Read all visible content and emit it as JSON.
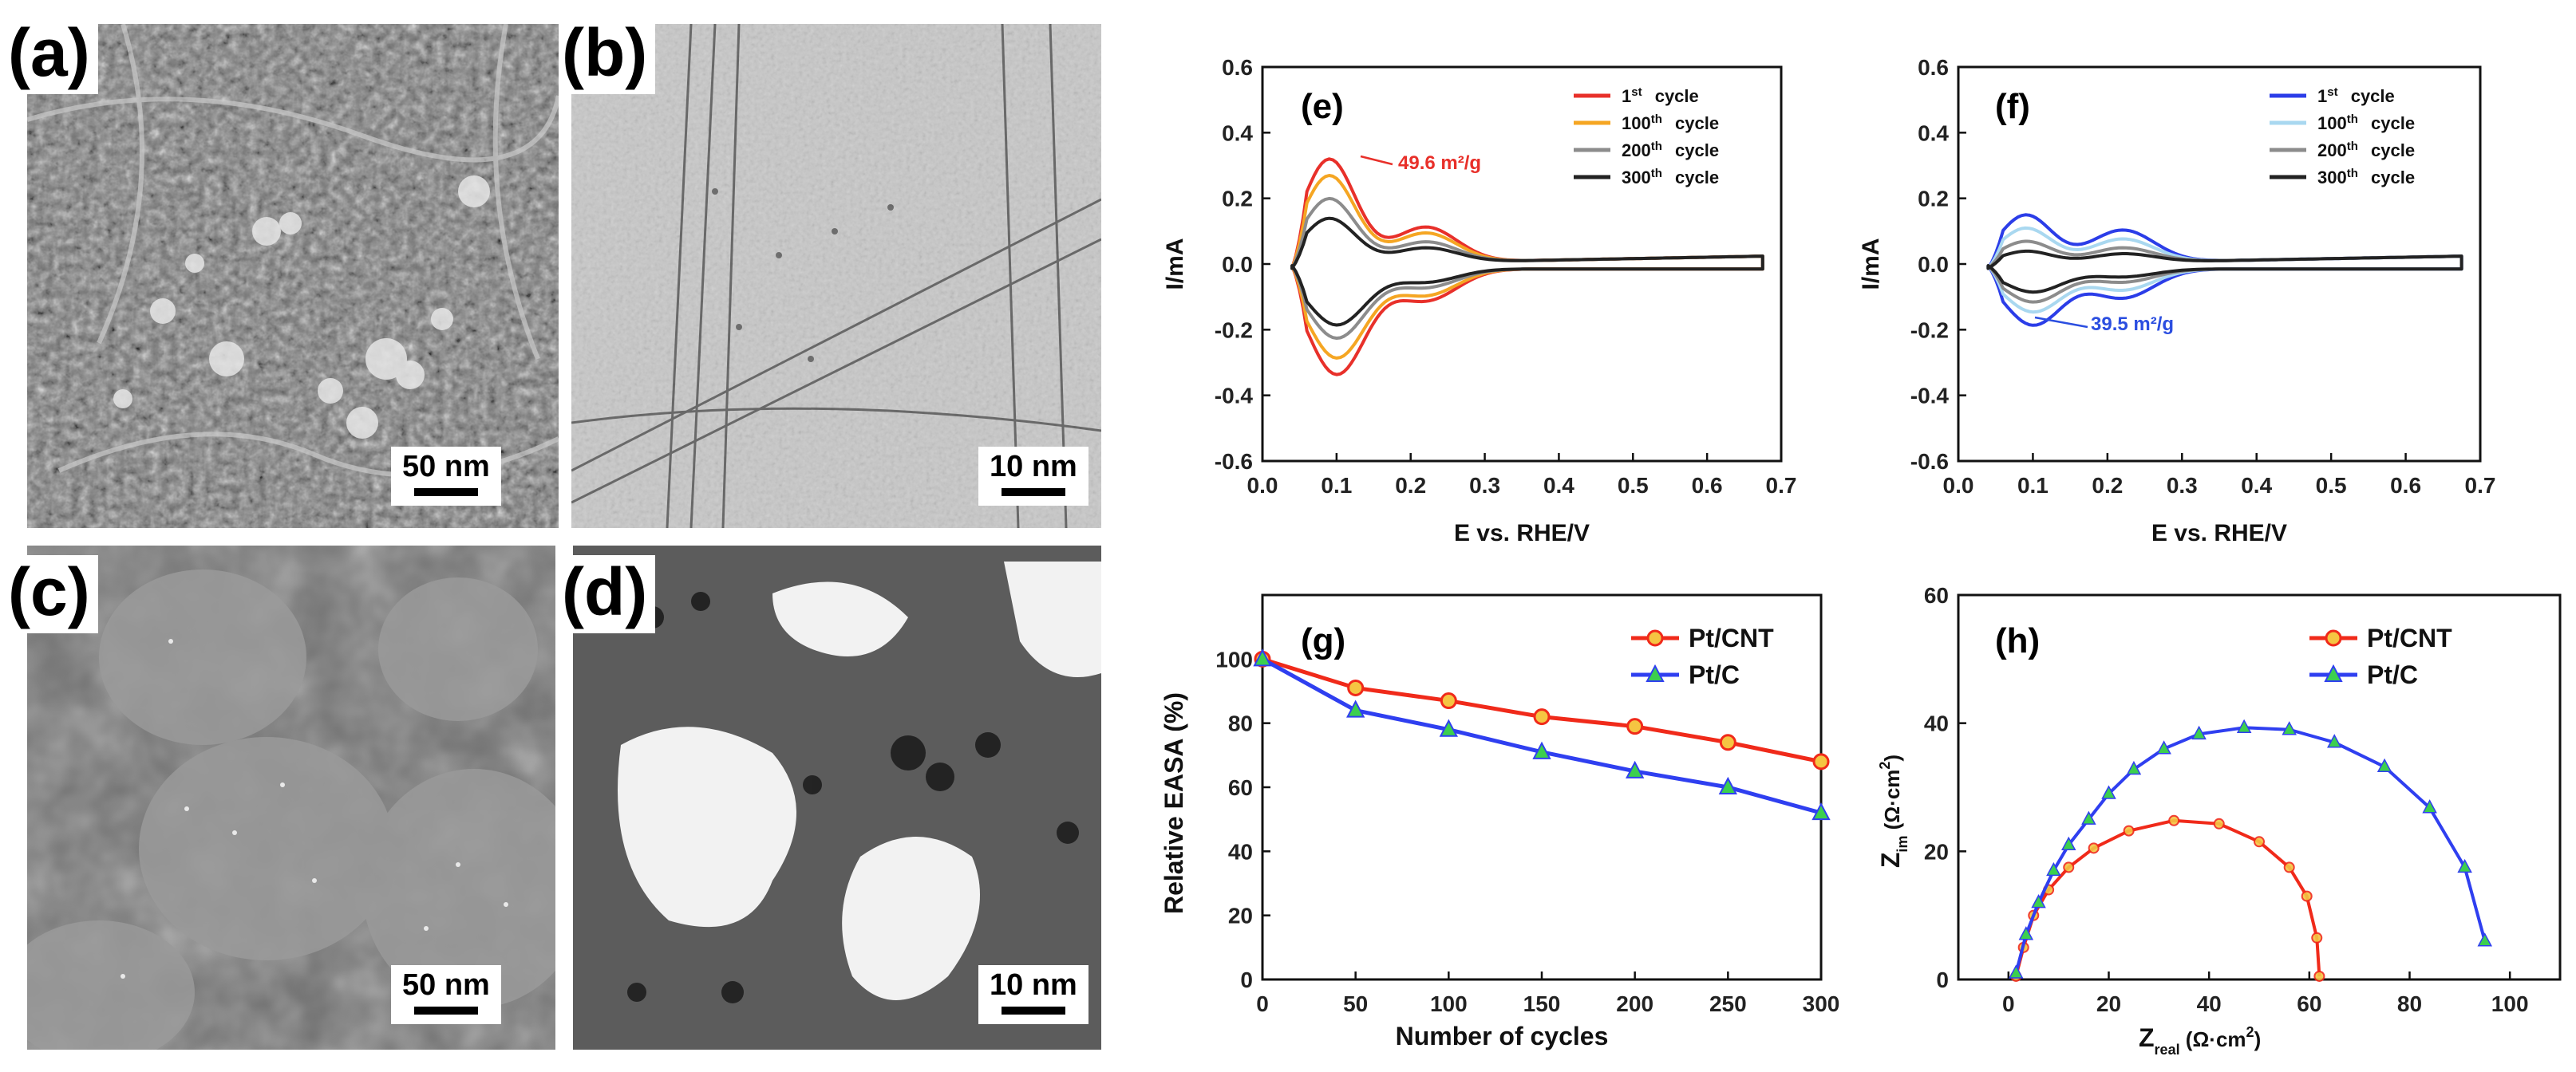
{
  "figure": {
    "micrographs": [
      {
        "label": "(a)",
        "scale": "50 nm",
        "kind": "SEM"
      },
      {
        "label": "(b)",
        "scale": "10 nm",
        "kind": "TEM"
      },
      {
        "label": "(c)",
        "scale": "50 nm",
        "kind": "SEM"
      },
      {
        "label": "(d)",
        "scale": "10 nm",
        "kind": "TEM"
      }
    ]
  },
  "chart_data": [
    {
      "id": "e",
      "panel_label": "(e)",
      "type": "line",
      "xlabel": "E vs. RHE/V",
      "ylabel": "I/mA",
      "xlim": [
        0.0,
        0.7
      ],
      "ylim": [
        -0.6,
        0.6
      ],
      "xticks": [
        "0.0",
        "0.1",
        "0.2",
        "0.3",
        "0.4",
        "0.5",
        "0.6",
        "0.7"
      ],
      "yticks": [
        "0.6",
        "0.4",
        "0.2",
        "0.0",
        "-0.2",
        "-0.4",
        "-0.6"
      ],
      "annotation": "49.6 m²/g",
      "annotation_color": "#e8302a",
      "legend": [
        {
          "sup": "st",
          "pre": "1",
          "post": "cycle",
          "color": "#e8302a"
        },
        {
          "sup": "th",
          "pre": "100",
          "post": "cycle",
          "color": "#f5a623"
        },
        {
          "sup": "th",
          "pre": "200",
          "post": "cycle",
          "color": "#8c8c8c"
        },
        {
          "sup": "th",
          "pre": "300",
          "post": "cycle",
          "color": "#222222"
        }
      ],
      "series": [
        {
          "name": "1st cycle",
          "color": "#e8302a",
          "peak_anodic": 0.33,
          "peak_cathodic": -0.33,
          "shoulder": 0.12
        },
        {
          "name": "100th cycle",
          "color": "#f5a623",
          "peak_anodic": 0.28,
          "peak_cathodic": -0.28,
          "shoulder": 0.1
        },
        {
          "name": "200th cycle",
          "color": "#8c8c8c",
          "peak_anodic": 0.21,
          "peak_cathodic": -0.22,
          "shoulder": 0.07
        },
        {
          "name": "300th cycle",
          "color": "#222222",
          "peak_anodic": 0.15,
          "peak_cathodic": -0.18,
          "shoulder": 0.05
        }
      ]
    },
    {
      "id": "f",
      "panel_label": "(f)",
      "type": "line",
      "xlabel": "E vs. RHE/V",
      "ylabel": "I/mA",
      "xlim": [
        0.0,
        0.7
      ],
      "ylim": [
        -0.6,
        0.6
      ],
      "xticks": [
        "0.0",
        "0.1",
        "0.2",
        "0.3",
        "0.4",
        "0.5",
        "0.6",
        "0.7"
      ],
      "yticks": [
        "0.6",
        "0.4",
        "0.2",
        "0.0",
        "-0.2",
        "-0.4",
        "-0.6"
      ],
      "annotation": "39.5 m²/g",
      "annotation_color": "#2b4ee0",
      "legend": [
        {
          "sup": "st",
          "pre": "1",
          "post": "cycle",
          "color": "#2b3de8"
        },
        {
          "sup": "th",
          "pre": "100",
          "post": "cycle",
          "color": "#a9d8f0"
        },
        {
          "sup": "th",
          "pre": "200",
          "post": "cycle",
          "color": "#8c8c8c"
        },
        {
          "sup": "th",
          "pre": "300",
          "post": "cycle",
          "color": "#222222"
        }
      ],
      "series": [
        {
          "name": "1st cycle",
          "color": "#2b3de8",
          "peak_anodic": 0.16,
          "peak_cathodic": -0.18,
          "shoulder": 0.11
        },
        {
          "name": "100th cycle",
          "color": "#a9d8f0",
          "peak_anodic": 0.12,
          "peak_cathodic": -0.14,
          "shoulder": 0.08
        },
        {
          "name": "200th cycle",
          "color": "#8c8c8c",
          "peak_anodic": 0.08,
          "peak_cathodic": -0.11,
          "shoulder": 0.05
        },
        {
          "name": "300th cycle",
          "color": "#222222",
          "peak_anodic": 0.05,
          "peak_cathodic": -0.08,
          "shoulder": 0.03
        }
      ]
    },
    {
      "id": "g",
      "panel_label": "(g)",
      "type": "line",
      "xlabel": "Number of cycles",
      "ylabel": "Relative EASA (%)",
      "xlim": [
        0,
        300
      ],
      "ylim": [
        0,
        120
      ],
      "xticks": [
        "0",
        "50",
        "100",
        "150",
        "200",
        "250",
        "300"
      ],
      "yticks": [
        "0",
        "20",
        "40",
        "60",
        "80",
        "100"
      ],
      "x": [
        0,
        50,
        100,
        150,
        200,
        250,
        300
      ],
      "series": [
        {
          "name": "Pt/CNT",
          "color": "#f02a1a",
          "marker": "circle",
          "marker_fill": "#f5c542",
          "values": [
            100,
            91,
            87,
            82,
            79,
            74,
            68
          ]
        },
        {
          "name": "Pt/C",
          "color": "#2f3ff0",
          "marker": "triangle",
          "marker_fill": "#3ccf4e",
          "values": [
            100,
            84,
            78,
            71,
            65,
            60,
            52
          ]
        }
      ]
    },
    {
      "id": "h",
      "panel_label": "(h)",
      "type": "scatter",
      "xlabel": "Zreal (Ω·cm²)",
      "xlabel_main": "Z",
      "xlabel_sub": "real",
      "xlabel_unit": " (Ω·cm",
      "ylabel_main": "Z",
      "ylabel_sub": "im",
      "ylabel_unit": " (Ω·cm",
      "xlim": [
        -10,
        110
      ],
      "ylim": [
        0,
        60
      ],
      "xticks": [
        "0",
        "20",
        "40",
        "60",
        "80",
        "100"
      ],
      "yticks": [
        "0",
        "20",
        "40",
        "60"
      ],
      "series": [
        {
          "name": "Pt/CNT",
          "color": "#f02a1a",
          "marker": "circle",
          "marker_fill": "#f5c542",
          "x": [
            1.5,
            3,
            5,
            8,
            12,
            17,
            24,
            33,
            42,
            50,
            56,
            59.5,
            61.5,
            62
          ],
          "y": [
            0.5,
            5,
            10,
            14,
            17.5,
            20.5,
            23.2,
            24.8,
            24.3,
            21.5,
            17.5,
            13,
            6.5,
            0.5
          ]
        },
        {
          "name": "Pt/C",
          "color": "#2f3ff0",
          "marker": "triangle",
          "marker_fill": "#3ccf4e",
          "x": [
            1.5,
            3.5,
            6,
            9,
            12,
            16,
            20,
            25,
            31,
            38,
            47,
            56,
            65,
            75,
            84,
            91,
            95
          ],
          "y": [
            1,
            7,
            12,
            17,
            21,
            25,
            29,
            32.8,
            36,
            38.3,
            39.3,
            39,
            37,
            33.2,
            26.8,
            17.5,
            6
          ]
        }
      ]
    }
  ]
}
